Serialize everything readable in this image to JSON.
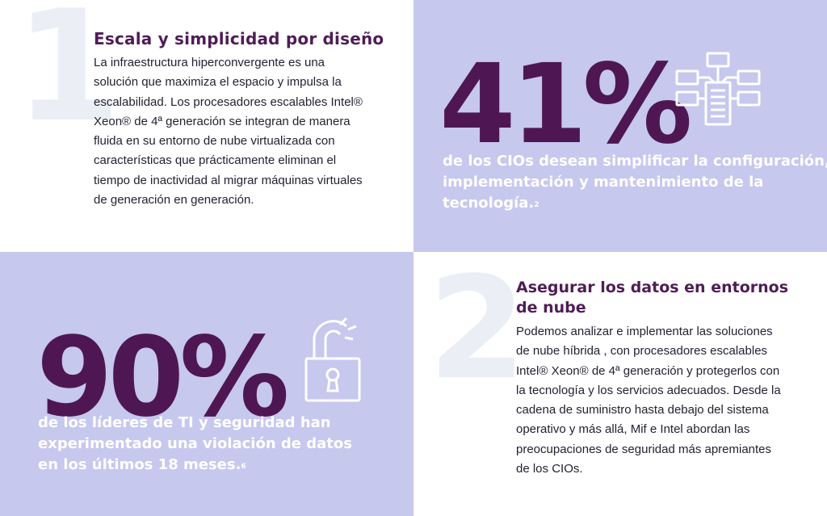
{
  "section1": {
    "number": "1",
    "title": "Escala y simplicidad por diseño",
    "body_lines": [
      "La infraestructura hiperconvergente es una",
      "solución que  maximiza el espacio y impulsa la",
      "escalabilidad. Los procesadores escalables Intel®",
      "Xeon® de 4ª generación se integran de manera",
      "fluida en su entorno de nube virtualizada con",
      "características que prácticamente eliminan el",
      "tiempo de inactividad al migrar máquinas virtuales",
      "de generación en generación."
    ]
  },
  "stat1": {
    "value": "41%",
    "caption_lines": [
      "de los CIOs desean simplificar la configuración,",
      "implementación y mantenimiento de la",
      "tecnología."
    ],
    "footnote": "2",
    "icon": "network-server-icon"
  },
  "stat2": {
    "value": "90%",
    "caption_lines": [
      "de los líderes de TI y seguridad han",
      "experimentado una violación de datos",
      "en los últimos 18 meses."
    ],
    "footnote": "6",
    "icon": "broken-lock-icon"
  },
  "section2": {
    "number": "2",
    "title_lines": [
      "Asegurar los datos en entornos",
      "de nube"
    ],
    "body_lines": [
      "Podemos analizar e implementar las soluciones",
      "de nube híbrida , con procesadores escalables",
      "Intel® Xeon® de 4ª generación y protegerlos con",
      "la tecnología y los servicios adecuados. Desde la",
      "cadena de suministro hasta debajo del sistema",
      "operativo y más allá, Mif e Intel abordan las",
      "preocupaciones de seguridad más apremiantes",
      "de los CIOs."
    ]
  },
  "colors": {
    "lavender": "#c6c8ee",
    "plum": "#4e1754",
    "title_plum": "#4f1d56",
    "watermark": "#eceef6",
    "white": "#ffffff"
  }
}
